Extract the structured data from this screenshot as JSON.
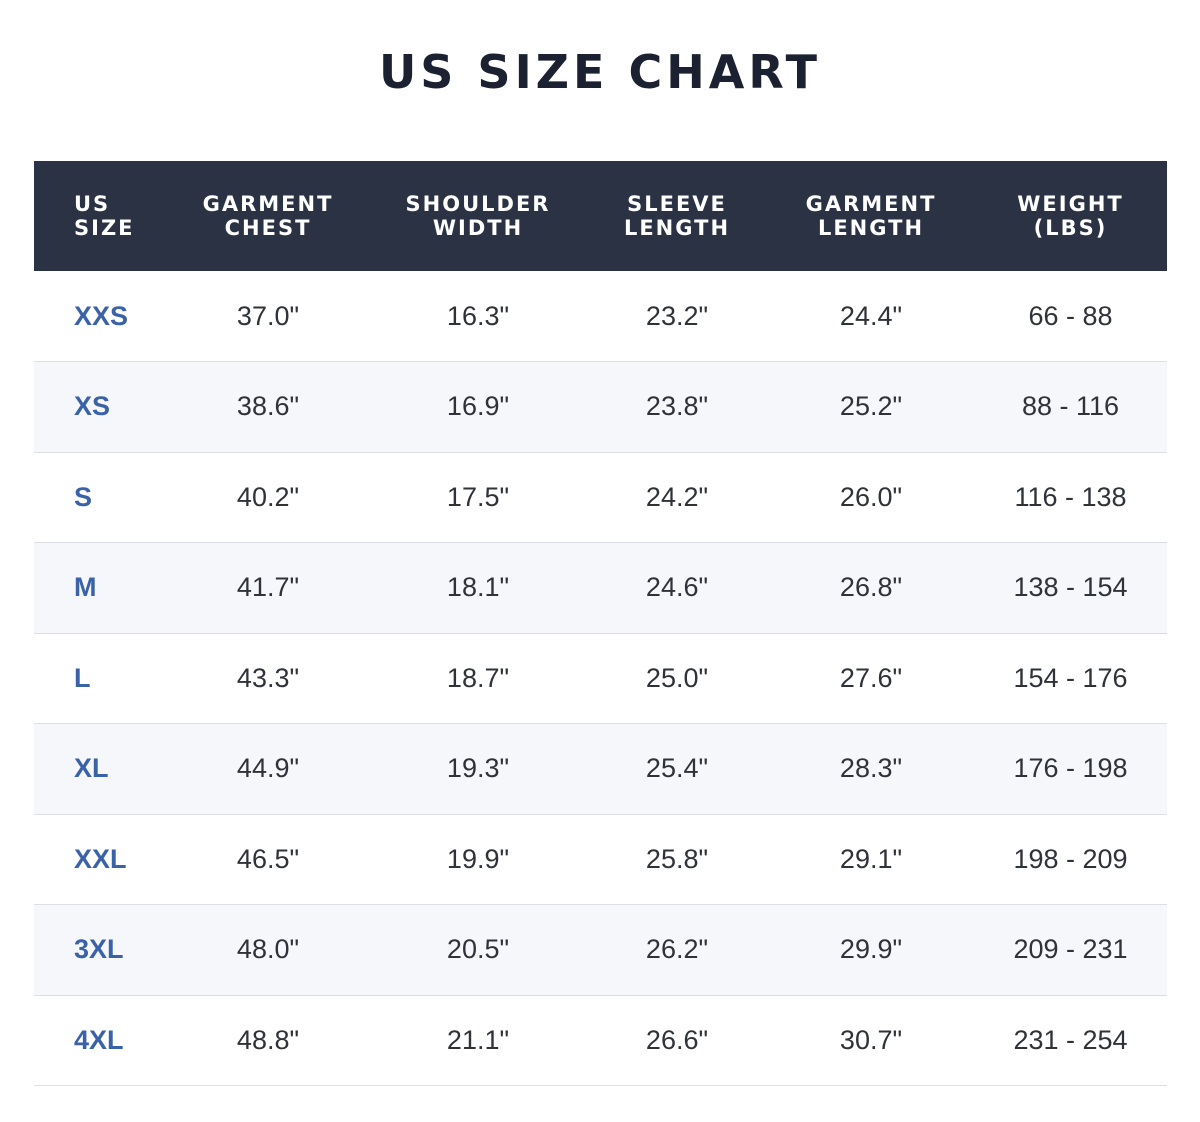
{
  "title": "US SIZE CHART",
  "colors": {
    "header_bg": "#2b3243",
    "header_text": "#ffffff",
    "size_text": "#3a62a8",
    "value_text": "#2f3238",
    "stripe": "#f6f7fa",
    "divider": "#dcdee3"
  },
  "columns": [
    {
      "line1": "US",
      "line2": "SIZE"
    },
    {
      "line1": "GARMENT",
      "line2": "CHEST"
    },
    {
      "line1": "SHOULDER",
      "line2": "WIDTH"
    },
    {
      "line1": "SLEEVE",
      "line2": "LENGTH"
    },
    {
      "line1": "GARMENT",
      "line2": "LENGTH"
    },
    {
      "line1": "WEIGHT",
      "line2": "(LBS)"
    }
  ],
  "rows": [
    {
      "size": "XXS",
      "chest": "37.0\"",
      "shoulder": "16.3\"",
      "sleeve": "23.2\"",
      "length": "24.4\"",
      "weight": "66 - 88"
    },
    {
      "size": "XS",
      "chest": "38.6\"",
      "shoulder": "16.9\"",
      "sleeve": "23.8\"",
      "length": "25.2\"",
      "weight": "88 - 116"
    },
    {
      "size": "S",
      "chest": "40.2\"",
      "shoulder": "17.5\"",
      "sleeve": "24.2\"",
      "length": "26.0\"",
      "weight": "116 - 138"
    },
    {
      "size": "M",
      "chest": "41.7\"",
      "shoulder": "18.1\"",
      "sleeve": "24.6\"",
      "length": "26.8\"",
      "weight": "138 - 154"
    },
    {
      "size": "L",
      "chest": "43.3\"",
      "shoulder": "18.7\"",
      "sleeve": "25.0\"",
      "length": "27.6\"",
      "weight": "154 - 176"
    },
    {
      "size": "XL",
      "chest": "44.9\"",
      "shoulder": "19.3\"",
      "sleeve": "25.4\"",
      "length": "28.3\"",
      "weight": "176 - 198"
    },
    {
      "size": "XXL",
      "chest": "46.5\"",
      "shoulder": "19.9\"",
      "sleeve": "25.8\"",
      "length": "29.1\"",
      "weight": "198 - 209"
    },
    {
      "size": "3XL",
      "chest": "48.0\"",
      "shoulder": "20.5\"",
      "sleeve": "26.2\"",
      "length": "29.9\"",
      "weight": "209 - 231"
    },
    {
      "size": "4XL",
      "chest": "48.8\"",
      "shoulder": "21.1\"",
      "sleeve": "26.6\"",
      "length": "30.7\"",
      "weight": "231 - 254"
    }
  ]
}
